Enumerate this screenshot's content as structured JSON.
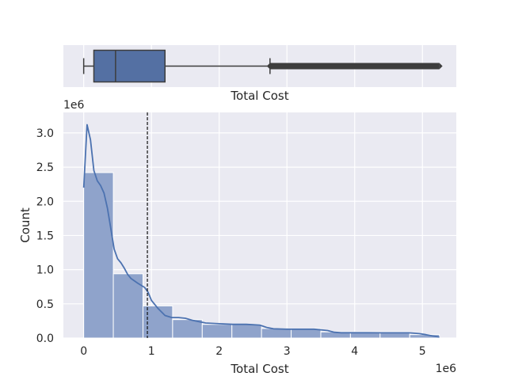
{
  "chart_data": [
    {
      "type": "box",
      "xlabel": "Total Cost",
      "xlim": [
        -300000,
        5500000
      ],
      "q1": 150000,
      "median": 470000,
      "q3": 1200000,
      "whisker_low": 0,
      "whisker_high": 2750000,
      "outliers_from": 2750000,
      "outliers_to": 5250000,
      "box_color": "#5470a3",
      "line_color": "#3d3d3d"
    },
    {
      "type": "histogram",
      "xlabel": "Total Cost",
      "ylabel": "Count",
      "x_scale_label": "1e6",
      "y_scale_label": "1e6",
      "xlim": [
        -300000,
        5500000
      ],
      "ylim": [
        0,
        3300000
      ],
      "x_ticks": [
        0,
        1000000,
        2000000,
        3000000,
        4000000,
        5000000
      ],
      "x_tick_labels": [
        "0",
        "1",
        "2",
        "3",
        "4",
        "5"
      ],
      "y_ticks": [
        0,
        500000,
        1000000,
        1500000,
        2000000,
        2500000,
        3000000
      ],
      "y_tick_labels": [
        "0.0",
        "0.5",
        "1.0",
        "1.5",
        "2.0",
        "2.5",
        "3.0"
      ],
      "bin_edges": [
        0,
        437500,
        875000,
        1312500,
        1750000,
        2187500,
        2625000,
        3062500,
        3500000,
        3937500,
        4375000,
        4812500,
        5250000
      ],
      "counts": [
        2420000,
        940000,
        470000,
        270000,
        200000,
        200000,
        140000,
        140000,
        90000,
        90000,
        90000,
        50000
      ],
      "kde": {
        "x": [
          0,
          50000,
          100000,
          150000,
          200000,
          250000,
          300000,
          350000,
          400000,
          450000,
          500000,
          550000,
          600000,
          650000,
          700000,
          800000,
          900000,
          950000,
          1000000,
          1100000,
          1200000,
          1300000,
          1400000,
          1500000,
          1600000,
          1800000,
          2000000,
          2200000,
          2400000,
          2600000,
          2700000,
          2800000,
          3000000,
          3200000,
          3400000,
          3600000,
          3700000,
          3800000,
          4000000,
          4200000,
          4400000,
          4600000,
          4800000,
          4950000,
          5050000,
          5150000,
          5250000
        ],
        "y": [
          2200000,
          3120000,
          2900000,
          2450000,
          2300000,
          2230000,
          2120000,
          1900000,
          1600000,
          1300000,
          1160000,
          1100000,
          1020000,
          930000,
          870000,
          800000,
          740000,
          670000,
          550000,
          430000,
          330000,
          300000,
          300000,
          290000,
          260000,
          220000,
          210000,
          200000,
          200000,
          190000,
          155000,
          135000,
          130000,
          130000,
          130000,
          110000,
          85000,
          78000,
          78000,
          78000,
          76000,
          76000,
          76000,
          65000,
          50000,
          30000,
          15000
        ]
      },
      "mean": 940000,
      "bar_color": "#8fa3cb",
      "line_color": "#4c72b0",
      "mean_line_color": "#111111",
      "background": "#eaeaf2",
      "grid": true,
      "grid_color": "#ffffff"
    }
  ]
}
